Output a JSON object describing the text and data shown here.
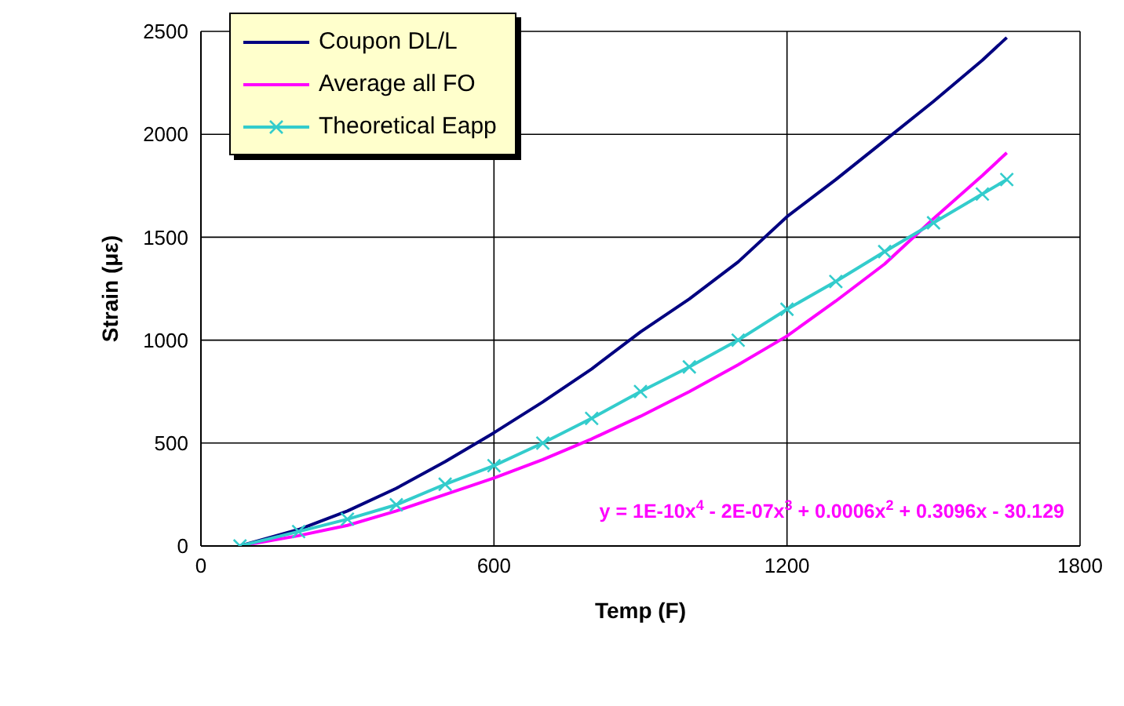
{
  "chart_data": {
    "type": "line",
    "xlabel": "Temp (F)",
    "ylabel": "Strain (με)",
    "xlim": [
      0,
      1800
    ],
    "xticks": [
      0,
      600,
      1200,
      1800
    ],
    "ylim": [
      0,
      2500
    ],
    "yticks": [
      0,
      500,
      1000,
      1500,
      2000,
      2500
    ],
    "grid": true,
    "legend": "top left",
    "line_style": "solid",
    "annotations": [
      "y = 1E-10x$^{4}$ - 2E-07x$^{3}$ + 0.0006x$^{2}$ + 0.3096x - 30.129"
    ],
    "series": [
      {
        "name": "Coupon DL/L",
        "color": "#000080",
        "marker": "none",
        "x": [
          80,
          200,
          300,
          400,
          500,
          600,
          700,
          800,
          900,
          1000,
          1100,
          1200,
          1300,
          1400,
          1500,
          1600,
          1650
        ],
        "values": [
          0,
          80,
          170,
          280,
          410,
          550,
          700,
          860,
          1040,
          1200,
          1380,
          1600,
          1780,
          1970,
          2160,
          2360,
          2470
        ]
      },
      {
        "name": "Average all FO",
        "color": "#ff00ff",
        "marker": "none",
        "x": [
          80,
          200,
          300,
          400,
          500,
          600,
          700,
          800,
          900,
          1000,
          1100,
          1200,
          1300,
          1400,
          1500,
          1600,
          1650
        ],
        "values": [
          0,
          50,
          100,
          170,
          250,
          330,
          420,
          520,
          630,
          750,
          880,
          1020,
          1190,
          1370,
          1590,
          1800,
          1910
        ]
      },
      {
        "name": "Theoretical Eapp",
        "color": "#33cccc",
        "marker": "cross",
        "x": [
          80,
          200,
          300,
          400,
          500,
          600,
          700,
          800,
          900,
          1000,
          1100,
          1200,
          1300,
          1400,
          1500,
          1600,
          1650
        ],
        "values": [
          0,
          70,
          130,
          200,
          300,
          390,
          500,
          620,
          750,
          870,
          1000,
          1150,
          1285,
          1430,
          1570,
          1710,
          1780
        ]
      }
    ]
  }
}
